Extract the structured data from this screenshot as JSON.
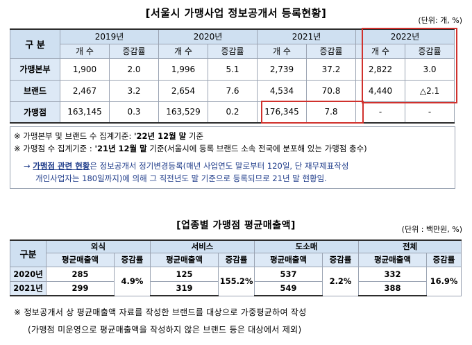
{
  "table1": {
    "title": "[서울시 가맹사업 정보공개서 등록현황]",
    "unit": "(단위: 개, %)",
    "gubun": "구 분",
    "years": [
      "2019년",
      "2020년",
      "2021년",
      "2022년"
    ],
    "sub": {
      "count": "개 수",
      "rate": "증감률"
    },
    "rows": [
      {
        "label": "가맹본부",
        "cells": [
          "1,900",
          "2.0",
          "1,996",
          "5.1",
          "2,739",
          "37.2",
          "2,822",
          "3.0"
        ]
      },
      {
        "label": "브랜드",
        "cells": [
          "2,467",
          "3.2",
          "2,654",
          "7.6",
          "4,534",
          "70.8",
          "4,440",
          "△2.1"
        ]
      },
      {
        "label": "가맹점",
        "cells": [
          "163,145",
          "0.3",
          "163,529",
          "0.2",
          "176,345",
          "7.8",
          "-",
          "-"
        ]
      }
    ]
  },
  "notes": {
    "n1_a": "※ 가맹본부 및 브랜드 수 집계기준: ",
    "n1_b": "'22년 12월 말",
    "n1_c": " 기준",
    "n2_a": "※ 가맹점 수 집계기준 : ",
    "n2_b": "'21년 12월 말",
    "n2_c": " 기준(서울시에 등록 브랜드 소속 전국에 분포해 있는 가맹점 총수)",
    "n3_arrow": "→ ",
    "n3_u": "가맹점 관련 현황",
    "n3_rest": "은 정보공개서 정기변경등록(매년 사업연도 말로부터 120일, 단 재무제표작성",
    "n3_line2": "개인사업자는 180일까지)에 의해 그 직전년도 말 기준으로 등록되므로 21년 말 현황임."
  },
  "table2": {
    "title": "[업종별 가맹점 평균매출액]",
    "unit": "(단위 : 백만원, %)",
    "gubun": "구분",
    "sectors": [
      "외식",
      "서비스",
      "도소매",
      "전체"
    ],
    "sub": {
      "avg": "평균매출액",
      "rate": "증감률"
    },
    "years": [
      "2020년",
      "2021년"
    ],
    "avg2020": [
      "285",
      "125",
      "537",
      "332"
    ],
    "avg2021": [
      "299",
      "319",
      "549",
      "388"
    ],
    "rates": [
      "4.9%",
      "155.2%",
      "2.2%",
      "16.9%"
    ]
  },
  "footnote": {
    "line1": "※ 정보공개서 상 평균매출액 자료를 작성한 브랜드를 대상으로 가중평균하여 작성",
    "line2": "(가맹점 미운영으로 평균매출액을 작성하지 않은 브랜드 등은 대상에서 제외)"
  }
}
